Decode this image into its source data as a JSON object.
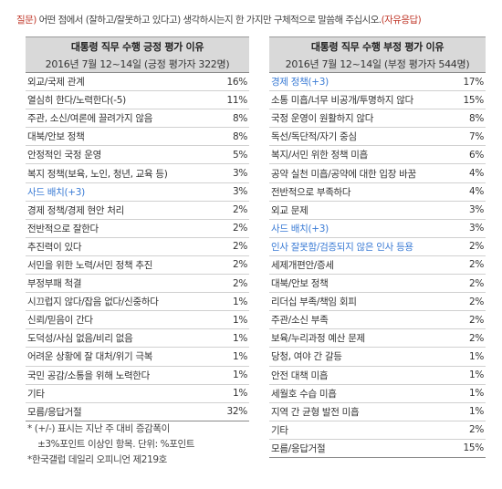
{
  "question": {
    "label": "질문)",
    "text": " 어떤 점에서 (잘하고/잘못하고 있다고) 생각하시는지 한 가지만 구체적으로 말씀해 주십시오.",
    "tag": "(자유응답)"
  },
  "positive": {
    "title": "대통령 직무 수행 긍정 평가 이유",
    "subtitle": "2016년 7월 12~14일 (긍정 평가자 322명)",
    "rows": [
      {
        "label": "외교/국제 관계",
        "pct": "16%",
        "highlight": false
      },
      {
        "label": "열심히 한다/노력한다(-5)",
        "pct": "11%",
        "highlight": false
      },
      {
        "label": "주관, 소신/여론에 끌려가지 않음",
        "pct": "8%",
        "highlight": false
      },
      {
        "label": "대북/안보 정책",
        "pct": "8%",
        "highlight": false
      },
      {
        "label": "안정적인 국정 운영",
        "pct": "5%",
        "highlight": false
      },
      {
        "label": "복지 정책(보육, 노인, 청년, 교육 등)",
        "pct": "3%",
        "highlight": false
      },
      {
        "label": "사드 배치(+3)",
        "pct": "3%",
        "highlight": true
      },
      {
        "label": "경제 정책/경제 현안 처리",
        "pct": "2%",
        "highlight": false
      },
      {
        "label": "전반적으로 잘한다",
        "pct": "2%",
        "highlight": false
      },
      {
        "label": "추진력이 있다",
        "pct": "2%",
        "highlight": false
      },
      {
        "label": "서민을 위한 노력/서민 정책 추진",
        "pct": "2%",
        "highlight": false
      },
      {
        "label": "부정부패 척결",
        "pct": "2%",
        "highlight": false
      },
      {
        "label": "시끄럽지 않다/잡음 없다/신중하다",
        "pct": "1%",
        "highlight": false
      },
      {
        "label": "신뢰/믿음이 간다",
        "pct": "1%",
        "highlight": false
      },
      {
        "label": "도덕성/사심 없음/비리 없음",
        "pct": "1%",
        "highlight": false
      },
      {
        "label": "어려운 상황에 잘 대처/위기 극복",
        "pct": "1%",
        "highlight": false
      },
      {
        "label": "국민 공감/소통을 위해 노력한다",
        "pct": "1%",
        "highlight": false
      },
      {
        "label": "기타",
        "pct": "1%",
        "highlight": false
      },
      {
        "label": "모름/응답거절",
        "pct": "32%",
        "highlight": false
      }
    ]
  },
  "negative": {
    "title": "대통령 직무 수행 부정 평가 이유",
    "subtitle": "2016년 7월 12~14일 (부정 평가자 544명)",
    "rows": [
      {
        "label": "경제 정책(+3)",
        "pct": "17%",
        "highlight": true
      },
      {
        "label": "소통 미흡/너무 비공개/투명하지 않다",
        "pct": "15%",
        "highlight": false
      },
      {
        "label": "국정 운영이 원활하지 않다",
        "pct": "8%",
        "highlight": false
      },
      {
        "label": "독선/독단적/자기 중심",
        "pct": "7%",
        "highlight": false
      },
      {
        "label": "복지/서민 위한 정책 미흡",
        "pct": "6%",
        "highlight": false
      },
      {
        "label": "공약 실천 미흡/공약에 대한 입장 바꿈",
        "pct": "4%",
        "highlight": false
      },
      {
        "label": "전반적으로 부족하다",
        "pct": "4%",
        "highlight": false
      },
      {
        "label": "외교 문제",
        "pct": "3%",
        "highlight": false
      },
      {
        "label": "사드 배치(+3)",
        "pct": "3%",
        "highlight": true
      },
      {
        "label": "인사 잘못함/검증되지 않은 인사 등용",
        "pct": "2%",
        "highlight": true
      },
      {
        "label": "세제개편안/증세",
        "pct": "2%",
        "highlight": false
      },
      {
        "label": "대북/안보 정책",
        "pct": "2%",
        "highlight": false
      },
      {
        "label": "리더십 부족/책임 회피",
        "pct": "2%",
        "highlight": false
      },
      {
        "label": "주관/소신 부족",
        "pct": "2%",
        "highlight": false
      },
      {
        "label": "보육/누리과정 예산 문제",
        "pct": "2%",
        "highlight": false
      },
      {
        "label": "당청, 여야 간 갈등",
        "pct": "1%",
        "highlight": false
      },
      {
        "label": "안전 대책 미흡",
        "pct": "1%",
        "highlight": false
      },
      {
        "label": "세월호 수습 미흡",
        "pct": "1%",
        "highlight": false
      },
      {
        "label": "지역 간 균형 발전 미흡",
        "pct": "1%",
        "highlight": false
      },
      {
        "label": "기타",
        "pct": "2%",
        "highlight": false
      },
      {
        "label": "모름/응답거절",
        "pct": "15%",
        "highlight": false
      }
    ]
  },
  "footnotes": {
    "line1": "* (+/-) 표시는 지난 주 대비 증감폭이",
    "line2": "±3%포인트 이상인 항목. 단위: %포인트",
    "line3": "*한국갤럽 데일리 오피니언 제219호"
  },
  "colors": {
    "highlight": "#3a7bd5",
    "question_label": "#c0392b",
    "header_bg": "#d9d9d9"
  }
}
